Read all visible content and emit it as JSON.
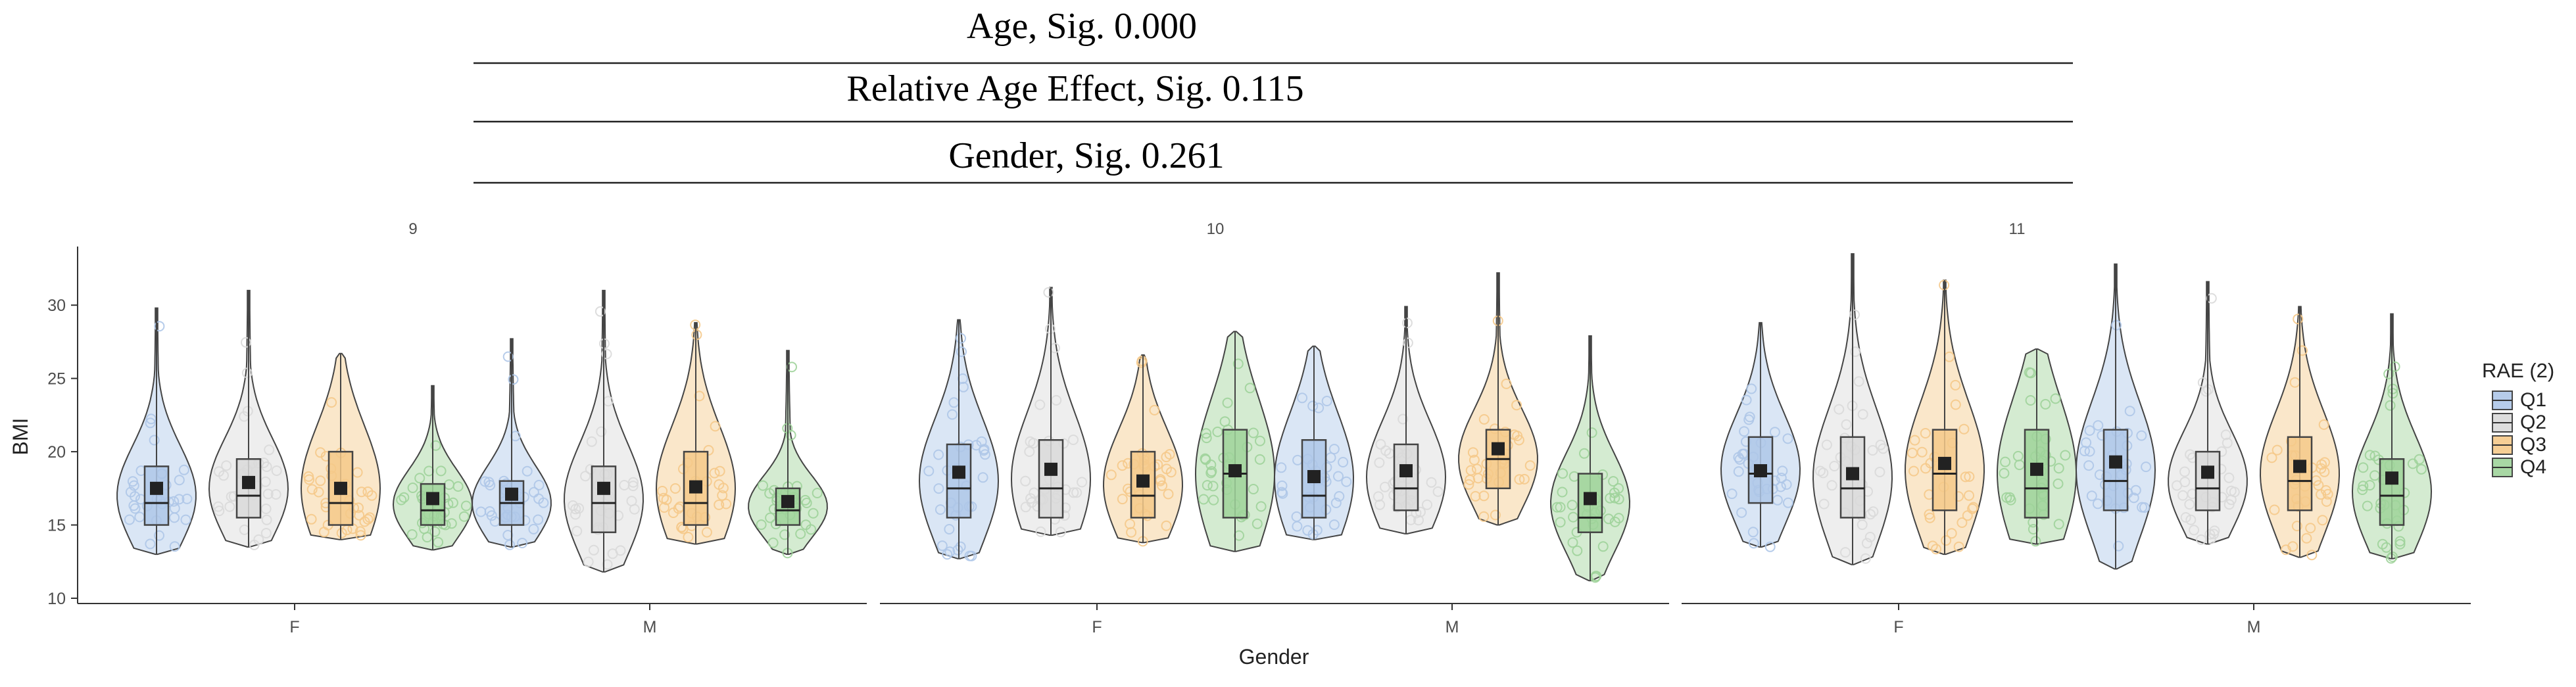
{
  "annotations": [
    {
      "text": "Age, Sig. 0.000"
    },
    {
      "text": "Relative Age Effect, Sig. 0.115"
    },
    {
      "text": "Gender, Sig. 0.261"
    }
  ],
  "colors": {
    "Q1": "#aec7e8",
    "Q2": "#d9d9d9",
    "Q3": "#f5c98a",
    "Q4": "#9fd39a",
    "outline": "#444444",
    "mean_marker": "#222222",
    "axis": "#333333"
  },
  "chart_data": {
    "type": "violin",
    "ylabel": "BMI",
    "xlabel": "Gender",
    "ylim": [
      10,
      34
    ],
    "yticks": [
      10,
      15,
      20,
      25,
      30
    ],
    "grid": false,
    "legend": {
      "title": "RAE (2)",
      "position": "right",
      "items": [
        "Q1",
        "Q2",
        "Q3",
        "Q4"
      ]
    },
    "facets": [
      {
        "label": "9",
        "groups": [
          {
            "gender": "F",
            "series": [
              {
                "rae": "Q1",
                "min": 13.0,
                "q1": 15.0,
                "median": 16.5,
                "q3": 19.0,
                "max": 29.8,
                "mean": 17.5
              },
              {
                "rae": "Q2",
                "min": 13.5,
                "q1": 15.5,
                "median": 17.0,
                "q3": 19.5,
                "max": 31.0,
                "mean": 17.9
              },
              {
                "rae": "Q3",
                "min": 14.0,
                "q1": 15.0,
                "median": 16.5,
                "q3": 20.0,
                "max": 26.7,
                "mean": 17.5
              },
              {
                "rae": "Q4",
                "min": 13.3,
                "q1": 15.0,
                "median": 16.0,
                "q3": 17.8,
                "max": 24.5,
                "mean": 16.8
              }
            ]
          },
          {
            "gender": "M",
            "series": [
              {
                "rae": "Q1",
                "min": 13.5,
                "q1": 15.0,
                "median": 16.5,
                "q3": 18.0,
                "max": 27.7,
                "mean": 17.1
              },
              {
                "rae": "Q2",
                "min": 11.8,
                "q1": 14.5,
                "median": 16.5,
                "q3": 19.0,
                "max": 31.0,
                "mean": 17.5
              },
              {
                "rae": "Q3",
                "min": 13.7,
                "q1": 15.0,
                "median": 16.5,
                "q3": 20.0,
                "max": 28.8,
                "mean": 17.6
              },
              {
                "rae": "Q4",
                "min": 13.0,
                "q1": 15.0,
                "median": 16.0,
                "q3": 17.5,
                "max": 26.9,
                "mean": 16.6
              }
            ]
          }
        ]
      },
      {
        "label": "10",
        "groups": [
          {
            "gender": "F",
            "series": [
              {
                "rae": "Q1",
                "min": 12.7,
                "q1": 15.5,
                "median": 17.5,
                "q3": 20.5,
                "max": 29.0,
                "mean": 18.6
              },
              {
                "rae": "Q2",
                "min": 14.3,
                "q1": 15.5,
                "median": 17.5,
                "q3": 20.8,
                "max": 31.2,
                "mean": 18.8
              },
              {
                "rae": "Q3",
                "min": 13.8,
                "q1": 15.5,
                "median": 17.0,
                "q3": 20.0,
                "max": 26.6,
                "mean": 18.0
              },
              {
                "rae": "Q4",
                "min": 13.2,
                "q1": 15.5,
                "median": 18.5,
                "q3": 21.5,
                "max": 28.2,
                "mean": 18.7
              }
            ]
          },
          {
            "gender": "M",
            "series": [
              {
                "rae": "Q1",
                "min": 14.0,
                "q1": 15.5,
                "median": 17.0,
                "q3": 20.8,
                "max": 27.2,
                "mean": 18.3
              },
              {
                "rae": "Q2",
                "min": 14.4,
                "q1": 16.0,
                "median": 17.5,
                "q3": 20.5,
                "max": 29.9,
                "mean": 18.7
              },
              {
                "rae": "Q3",
                "min": 15.0,
                "q1": 17.5,
                "median": 19.5,
                "q3": 21.5,
                "max": 32.2,
                "mean": 20.2
              },
              {
                "rae": "Q4",
                "min": 11.2,
                "q1": 14.5,
                "median": 15.5,
                "q3": 18.5,
                "max": 27.9,
                "mean": 16.8
              }
            ]
          }
        ]
      },
      {
        "label": "11",
        "groups": [
          {
            "gender": "F",
            "series": [
              {
                "rae": "Q1",
                "min": 13.5,
                "q1": 16.5,
                "median": 18.5,
                "q3": 21.0,
                "max": 28.8,
                "mean": 18.7
              },
              {
                "rae": "Q2",
                "min": 12.3,
                "q1": 15.5,
                "median": 17.5,
                "q3": 21.0,
                "max": 33.5,
                "mean": 18.5
              },
              {
                "rae": "Q3",
                "min": 13.0,
                "q1": 16.0,
                "median": 18.5,
                "q3": 21.5,
                "max": 31.7,
                "mean": 19.2
              },
              {
                "rae": "Q4",
                "min": 13.7,
                "q1": 15.5,
                "median": 17.5,
                "q3": 21.5,
                "max": 27.0,
                "mean": 18.8
              }
            ]
          },
          {
            "gender": "M",
            "series": [
              {
                "rae": "Q1",
                "min": 12.0,
                "q1": 16.0,
                "median": 18.0,
                "q3": 21.5,
                "max": 32.8,
                "mean": 19.3
              },
              {
                "rae": "Q2",
                "min": 13.7,
                "q1": 16.0,
                "median": 17.5,
                "q3": 20.0,
                "max": 31.6,
                "mean": 18.6
              },
              {
                "rae": "Q3",
                "min": 12.8,
                "q1": 16.0,
                "median": 18.0,
                "q3": 21.0,
                "max": 29.9,
                "mean": 19.0
              },
              {
                "rae": "Q4",
                "min": 12.7,
                "q1": 15.0,
                "median": 17.0,
                "q3": 19.5,
                "max": 29.4,
                "mean": 18.2
              }
            ]
          }
        ]
      }
    ]
  }
}
